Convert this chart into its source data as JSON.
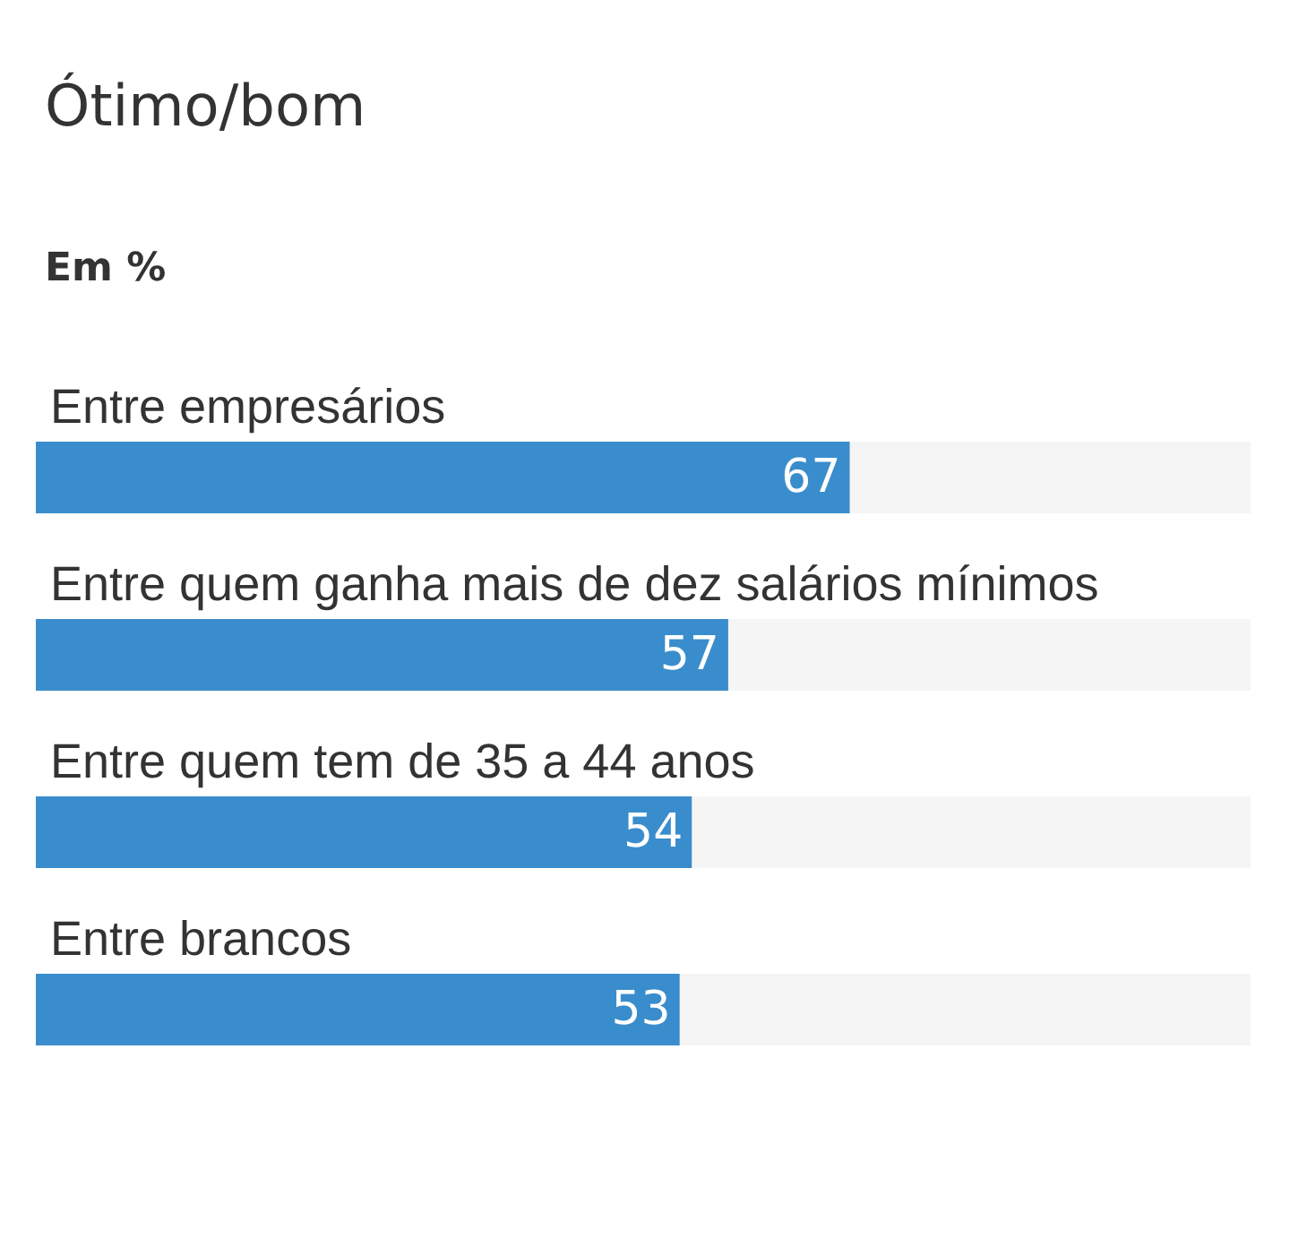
{
  "chart_data": {
    "type": "bar",
    "orientation": "horizontal",
    "title": "Ótimo/bom",
    "subtitle": "Em %",
    "categories": [
      "Entre empresários",
      "Entre quem ganha mais de dez salários mínimos",
      "Entre quem tem de 35 a 44 anos",
      "Entre brancos"
    ],
    "values": [
      67,
      57,
      54,
      53
    ],
    "color": "#3a8dcc",
    "xlim": [
      0,
      100
    ],
    "data_labels": true,
    "tick_labels": false
  }
}
